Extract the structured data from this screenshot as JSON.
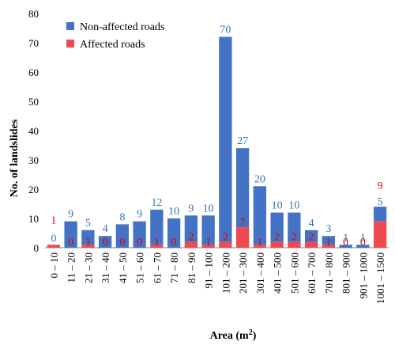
{
  "chart_data": {
    "type": "bar",
    "stacked": true,
    "categories": [
      "0 – 10",
      "11 – 20",
      "21 – 30",
      "31 – 40",
      "41 – 50",
      "51 – 60",
      "61 – 70",
      "71 – 80",
      "81 – 90",
      "91 – 100",
      "101 – 200",
      "201 – 300",
      "301 – 400",
      "401 – 500",
      "501 – 600",
      "601 – 700",
      "701 – 800",
      "801 – 900",
      "901 – 1000",
      "1001 – 1500"
    ],
    "series": [
      {
        "name": "Non-affected roads",
        "color": "#4472C4",
        "label_color": "#2E75B6",
        "values": [
          0,
          9,
          5,
          4,
          8,
          9,
          12,
          10,
          9,
          10,
          70,
          27,
          20,
          10,
          10,
          4,
          3,
          1,
          1,
          5
        ]
      },
      {
        "name": "Affected roads",
        "color": "#EF4A4F",
        "label_color": "#E00000",
        "values": [
          1,
          0,
          1,
          0,
          0,
          0,
          1,
          0,
          2,
          1,
          2,
          7,
          1,
          2,
          2,
          2,
          1,
          0,
          0,
          9
        ]
      }
    ],
    "xlabel": "Area (m²)",
    "ylabel": "No. of landslides",
    "ylim": [
      0,
      80
    ],
    "yticks": [
      "0",
      "10",
      "20",
      "30",
      "40",
      "50",
      "60",
      "70",
      "80"
    ],
    "legend_position": "top-left",
    "grid": false
  }
}
